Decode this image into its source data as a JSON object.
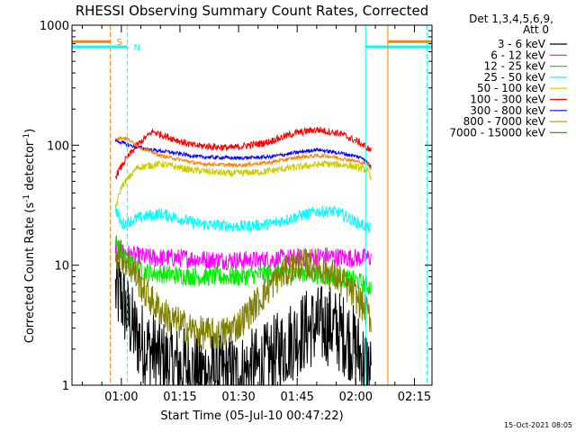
{
  "chart_data": {
    "type": "line",
    "title": "RHESSI Observing Summary Count Rates, Corrected",
    "xlabel": "Start Time (05-Jul-10 00:47:22)",
    "ylabel_main": "Corrected Count Rate (s",
    "ylabel_sup1": "-1",
    "ylabel_mid": " detector",
    "ylabel_sup2": "-1",
    "ylabel_end": ")",
    "yscale": "log",
    "ylim": [
      1,
      1000
    ],
    "xlim_minutes": [
      47.37,
      139.5
    ],
    "yticks": [
      {
        "label": "1",
        "value": 1
      },
      {
        "label": "10",
        "value": 10
      },
      {
        "label": "100",
        "value": 100
      },
      {
        "label": "1000",
        "value": 1000
      }
    ],
    "xticks": [
      {
        "label": "01:00",
        "minute": 60
      },
      {
        "label": "01:15",
        "minute": 75
      },
      {
        "label": "01:30",
        "minute": 90
      },
      {
        "label": "01:45",
        "minute": 105
      },
      {
        "label": "02:00",
        "minute": 120
      },
      {
        "label": "02:15",
        "minute": 135
      }
    ],
    "legend_header": [
      "Det 1,3,4,5,6,9,",
      "Att 0"
    ],
    "legend_position": "right",
    "series": [
      {
        "name": "3 - 6 keV",
        "color": "#000000",
        "profile": [
          [
            58.5,
            6
          ],
          [
            60,
            5.5
          ],
          [
            62,
            3.5
          ],
          [
            64,
            2.5
          ],
          [
            67,
            2
          ],
          [
            72,
            1.5
          ],
          [
            80,
            1.3
          ],
          [
            90,
            1.2
          ],
          [
            97,
            1.5
          ],
          [
            103,
            2.3
          ],
          [
            108,
            3
          ],
          [
            113,
            3.2
          ],
          [
            118,
            2.5
          ],
          [
            121,
            1.8
          ],
          [
            124,
            1.2
          ]
        ],
        "noise": 0.35
      },
      {
        "name": "6 - 12 keV",
        "color": "#ff00ff",
        "profile": [
          [
            58.5,
            14
          ],
          [
            60,
            13
          ],
          [
            63,
            12
          ],
          [
            68,
            11.5
          ],
          [
            75,
            11.5
          ],
          [
            85,
            11
          ],
          [
            95,
            11
          ],
          [
            105,
            11.5
          ],
          [
            112,
            12
          ],
          [
            118,
            11.5
          ],
          [
            124,
            11.5
          ]
        ],
        "noise": 0.08
      },
      {
        "name": "12 - 25 keV",
        "color": "#00ee00",
        "profile": [
          [
            58.5,
            16
          ],
          [
            61,
            11
          ],
          [
            65,
            9
          ],
          [
            70,
            8.5
          ],
          [
            80,
            8
          ],
          [
            90,
            8
          ],
          [
            97,
            8.5
          ],
          [
            103,
            9
          ],
          [
            108,
            8.5
          ],
          [
            113,
            8
          ],
          [
            120,
            7.5
          ],
          [
            124,
            6.5
          ]
        ],
        "noise": 0.08
      },
      {
        "name": "25 - 50 keV",
        "color": "#00ffff",
        "profile": [
          [
            58.5,
            30
          ],
          [
            60,
            22
          ],
          [
            65,
            25
          ],
          [
            70,
            27
          ],
          [
            80,
            22
          ],
          [
            90,
            21
          ],
          [
            98,
            22
          ],
          [
            104,
            25
          ],
          [
            110,
            28
          ],
          [
            115,
            28
          ],
          [
            120,
            23
          ],
          [
            124,
            20
          ]
        ],
        "noise": 0.05
      },
      {
        "name": "50 - 100 keV",
        "color": "#cccc00",
        "profile": [
          [
            58.5,
            30
          ],
          [
            60,
            45
          ],
          [
            64,
            65
          ],
          [
            70,
            70
          ],
          [
            78,
            62
          ],
          [
            88,
            58
          ],
          [
            96,
            60
          ],
          [
            104,
            65
          ],
          [
            112,
            70
          ],
          [
            118,
            68
          ],
          [
            123,
            62
          ],
          [
            124,
            50
          ]
        ],
        "noise": 0.03
      },
      {
        "name": "100 - 300 keV",
        "color": "#ff0000",
        "profile": [
          [
            58.5,
            55
          ],
          [
            61,
            75
          ],
          [
            64,
            100
          ],
          [
            68,
            130
          ],
          [
            71,
            120
          ],
          [
            78,
            100
          ],
          [
            88,
            95
          ],
          [
            97,
            105
          ],
          [
            104,
            125
          ],
          [
            110,
            135
          ],
          [
            116,
            125
          ],
          [
            121,
            105
          ],
          [
            124,
            90
          ]
        ],
        "noise": 0.03
      },
      {
        "name": "300 - 800 keV",
        "color": "#0000ff",
        "profile": [
          [
            58.5,
            110
          ],
          [
            62,
            100
          ],
          [
            67,
            92
          ],
          [
            72,
            88
          ],
          [
            80,
            80
          ],
          [
            90,
            78
          ],
          [
            98,
            80
          ],
          [
            104,
            86
          ],
          [
            110,
            92
          ],
          [
            117,
            85
          ],
          [
            122,
            78
          ],
          [
            124,
            65
          ]
        ],
        "noise": 0.015
      },
      {
        "name": "800 - 7000 keV",
        "color": "#ff8000",
        "profile": [
          [
            58.5,
            115
          ],
          [
            61,
            115
          ],
          [
            65,
            95
          ],
          [
            70,
            82
          ],
          [
            80,
            70
          ],
          [
            90,
            68
          ],
          [
            98,
            72
          ],
          [
            106,
            80
          ],
          [
            112,
            82
          ],
          [
            118,
            76
          ],
          [
            123,
            70
          ],
          [
            124,
            62
          ]
        ],
        "noise": 0.015
      },
      {
        "name": "7000 - 15000 keV",
        "color": "#808000",
        "profile": [
          [
            58.5,
            13
          ],
          [
            60,
            12
          ],
          [
            63,
            9
          ],
          [
            66,
            6
          ],
          [
            69,
            4.5
          ],
          [
            73,
            3.5
          ],
          [
            79,
            2.8
          ],
          [
            85,
            2.6
          ],
          [
            90,
            3.2
          ],
          [
            95,
            5
          ],
          [
            100,
            8
          ],
          [
            105,
            10
          ],
          [
            110,
            10
          ],
          [
            115,
            8
          ],
          [
            119,
            6
          ],
          [
            122,
            4.5
          ],
          [
            124,
            3.5
          ]
        ],
        "noise": 0.14
      }
    ],
    "annotations": [
      {
        "label": "S",
        "color": "#ff8000",
        "y": 730,
        "start": 47.37,
        "end": 57.2,
        "dashed_minute": 57.2
      },
      {
        "label": "N",
        "color": "#00ffff",
        "y": 660,
        "start": 47.37,
        "end": 61.5,
        "dashed_minute": 61.5
      }
    ],
    "right_annotations": [
      {
        "color": "#00ffff",
        "y": 660,
        "start": 122.5,
        "end": 139.5,
        "solid_minute": 122.5,
        "dashed_minute": 138.2
      },
      {
        "color": "#ff8000",
        "y": 730,
        "start": 128.2,
        "end": 139.5,
        "solid_minute": 128.2
      }
    ],
    "footer_timestamp": "15-Oct-2021 08:05"
  }
}
